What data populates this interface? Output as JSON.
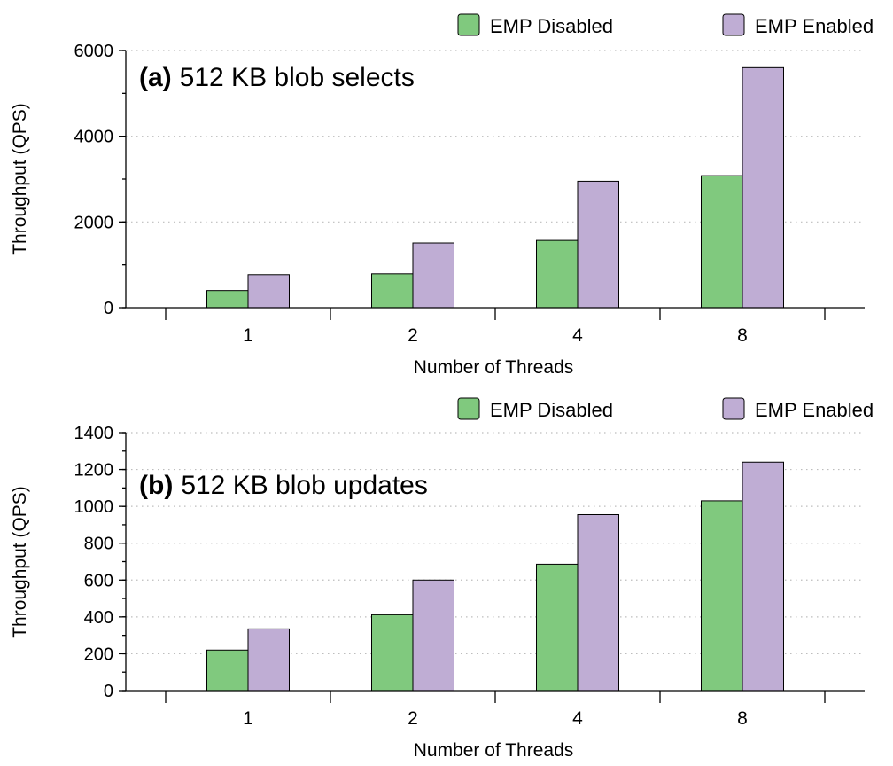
{
  "colors": {
    "disabled": "#80c97e",
    "enabled": "#bfadd4"
  },
  "legend": {
    "disabled": "EMP Disabled",
    "enabled": "EMP Enabled"
  },
  "chart_data": [
    {
      "type": "bar",
      "title_prefix": "(a)",
      "title": "512 KB blob selects",
      "xlabel": "Number of Threads",
      "ylabel": "Throughput (QPS)",
      "categories": [
        "1",
        "2",
        "4",
        "8"
      ],
      "ylim": [
        0,
        6000
      ],
      "yticks": [
        0,
        2000,
        4000,
        6000
      ],
      "yticks_minor_step": 1000,
      "grid": true,
      "legend_position": "top-right",
      "series": [
        {
          "name": "EMP Disabled",
          "values": [
            400,
            790,
            1570,
            3080
          ]
        },
        {
          "name": "EMP Enabled",
          "values": [
            770,
            1510,
            2950,
            5600
          ]
        }
      ]
    },
    {
      "type": "bar",
      "title_prefix": "(b)",
      "title": "512 KB blob updates",
      "xlabel": "Number of Threads",
      "ylabel": "Throughput (QPS)",
      "categories": [
        "1",
        "2",
        "4",
        "8"
      ],
      "ylim": [
        0,
        1400
      ],
      "yticks": [
        0,
        200,
        400,
        600,
        800,
        1000,
        1200,
        1400
      ],
      "yticks_minor_step": 100,
      "grid": true,
      "legend_position": "top-right",
      "series": [
        {
          "name": "EMP Disabled",
          "values": [
            220,
            412,
            686,
            1030
          ]
        },
        {
          "name": "EMP Enabled",
          "values": [
            335,
            600,
            955,
            1240
          ]
        }
      ]
    }
  ]
}
